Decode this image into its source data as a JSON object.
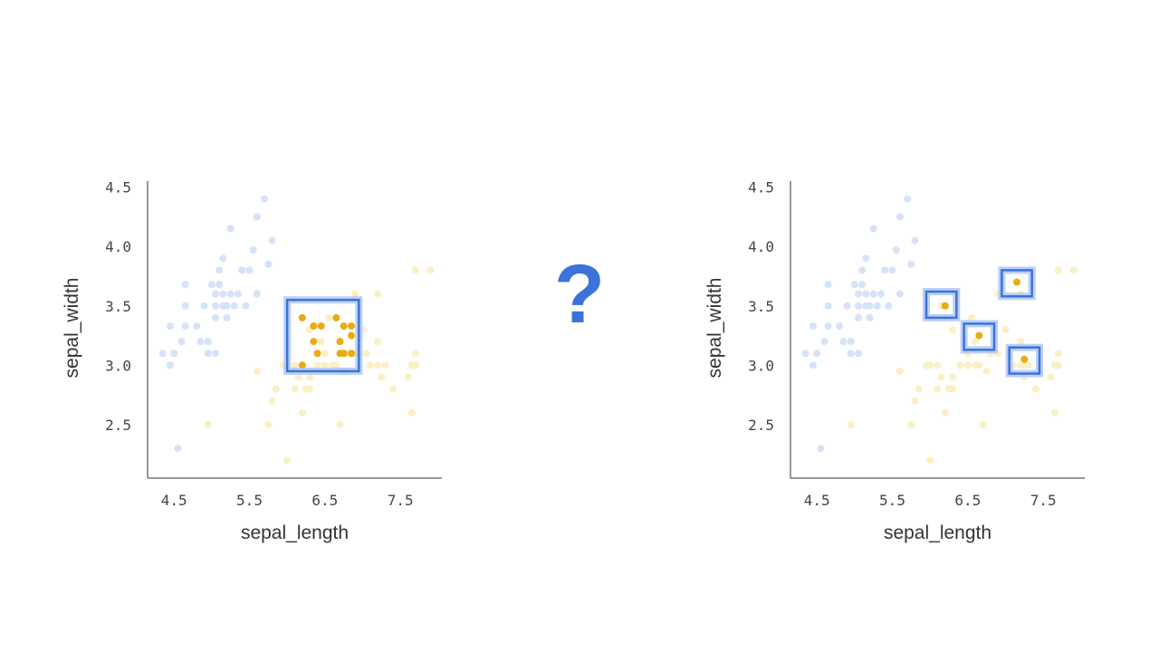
{
  "question_mark": "?",
  "colors": {
    "faded_blue": "#d6e2f8",
    "faded_yellow": "#fbefc5",
    "highlight": "#e8ab14",
    "box_stroke": "#3b73dc",
    "box_glow": "#a9c4f2",
    "question_mark": "#3b73dc"
  },
  "chart_data": [
    {
      "type": "scatter",
      "xlabel": "sepal_length",
      "ylabel": "sepal_width",
      "xticks": [
        "4.5",
        "5.5",
        "6.5",
        "7.5"
      ],
      "yticks": [
        "2.5",
        "3.0",
        "3.5",
        "4.0",
        "4.5"
      ],
      "xlim": [
        4.15,
        8.05
      ],
      "ylim": [
        2.05,
        4.55
      ],
      "grid": false,
      "series": [
        {
          "color": "faded_blue",
          "points": [
            [
              4.5,
              3.1
            ],
            [
              4.35,
              3.1
            ],
            [
              4.45,
              3.0
            ],
            [
              4.45,
              3.33
            ],
            [
              4.6,
              3.2
            ],
            [
              4.65,
              3.33
            ],
            [
              4.8,
              3.33
            ],
            [
              4.65,
              3.5
            ],
            [
              4.65,
              3.68
            ],
            [
              4.85,
              3.2
            ],
            [
              4.9,
              3.5
            ],
            [
              4.95,
              3.1
            ],
            [
              4.95,
              3.2
            ],
            [
              5.0,
              3.68
            ],
            [
              5.05,
              3.1
            ],
            [
              5.05,
              3.4
            ],
            [
              5.05,
              3.5
            ],
            [
              5.05,
              3.6
            ],
            [
              5.1,
              3.68
            ],
            [
              5.15,
              3.5
            ],
            [
              5.15,
              3.6
            ],
            [
              5.1,
              3.8
            ],
            [
              5.15,
              3.9
            ],
            [
              5.2,
              3.4
            ],
            [
              5.25,
              3.6
            ],
            [
              5.2,
              3.5
            ],
            [
              5.3,
              3.5
            ],
            [
              5.35,
              3.6
            ],
            [
              5.4,
              3.8
            ],
            [
              5.45,
              3.5
            ],
            [
              5.5,
              3.8
            ],
            [
              5.55,
              3.97
            ],
            [
              5.6,
              3.6
            ],
            [
              5.25,
              4.15
            ],
            [
              5.6,
              4.25
            ],
            [
              5.7,
              4.4
            ],
            [
              5.75,
              3.85
            ],
            [
              5.8,
              4.05
            ],
            [
              4.55,
              2.3
            ]
          ]
        },
        {
          "color": "faded_yellow",
          "points": [
            [
              4.95,
              2.5
            ],
            [
              5.6,
              2.95
            ],
            [
              5.75,
              2.5
            ],
            [
              5.8,
              2.7
            ],
            [
              5.85,
              2.8
            ],
            [
              5.95,
              3.0
            ],
            [
              6.0,
              3.0
            ],
            [
              6.0,
              2.2
            ],
            [
              6.1,
              2.8
            ],
            [
              6.1,
              3.0
            ],
            [
              6.15,
              2.9
            ],
            [
              6.2,
              2.6
            ],
            [
              6.25,
              2.8
            ],
            [
              6.3,
              2.8
            ],
            [
              6.3,
              2.9
            ],
            [
              6.3,
              3.3
            ],
            [
              6.4,
              3.0
            ],
            [
              6.45,
              3.2
            ],
            [
              6.5,
              3.0
            ],
            [
              6.6,
              3.0
            ],
            [
              6.65,
              3.0
            ],
            [
              6.7,
              2.5
            ],
            [
              6.8,
              3.1
            ],
            [
              6.9,
              3.1
            ],
            [
              7.0,
              3.3
            ],
            [
              7.05,
              3.1
            ],
            [
              7.1,
              3.0
            ],
            [
              7.2,
              3.0
            ],
            [
              7.2,
              3.2
            ],
            [
              7.2,
              3.6
            ],
            [
              7.25,
              2.9
            ],
            [
              7.3,
              3.0
            ],
            [
              7.4,
              2.8
            ],
            [
              7.6,
              2.9
            ],
            [
              7.65,
              3.0
            ],
            [
              7.7,
              3.0
            ],
            [
              7.7,
              3.1
            ],
            [
              7.65,
              2.6
            ],
            [
              7.7,
              3.8
            ],
            [
              7.9,
              3.8
            ],
            [
              6.75,
              2.95
            ],
            [
              6.55,
              3.4
            ],
            [
              6.5,
              3.1
            ],
            [
              6.9,
              3.6
            ],
            [
              6.2,
              3.4
            ]
          ]
        },
        {
          "color": "highlight",
          "points": [
            [
              6.2,
              3.4
            ],
            [
              6.35,
              3.33
            ],
            [
              6.45,
              3.33
            ],
            [
              6.35,
              3.2
            ],
            [
              6.65,
              3.4
            ],
            [
              6.75,
              3.33
            ],
            [
              6.85,
              3.33
            ],
            [
              6.85,
              3.25
            ],
            [
              6.7,
              3.2
            ],
            [
              6.85,
              3.1
            ],
            [
              6.4,
              3.1
            ],
            [
              6.7,
              3.1
            ],
            [
              6.75,
              3.1
            ],
            [
              6.2,
              3.0
            ]
          ]
        }
      ],
      "boxes": [
        {
          "x": [
            6.0,
            6.95
          ],
          "y": [
            2.95,
            3.55
          ]
        }
      ]
    },
    {
      "type": "scatter",
      "xlabel": "sepal_length",
      "ylabel": "sepal_width",
      "xticks": [
        "4.5",
        "5.5",
        "6.5",
        "7.5"
      ],
      "yticks": [
        "2.5",
        "3.0",
        "3.5",
        "4.0",
        "4.5"
      ],
      "xlim": [
        4.15,
        8.05
      ],
      "ylim": [
        2.05,
        4.55
      ],
      "grid": false,
      "series": [
        {
          "color": "faded_blue",
          "points": [
            [
              4.5,
              3.1
            ],
            [
              4.35,
              3.1
            ],
            [
              4.45,
              3.0
            ],
            [
              4.45,
              3.33
            ],
            [
              4.6,
              3.2
            ],
            [
              4.65,
              3.33
            ],
            [
              4.8,
              3.33
            ],
            [
              4.65,
              3.5
            ],
            [
              4.65,
              3.68
            ],
            [
              4.85,
              3.2
            ],
            [
              4.9,
              3.5
            ],
            [
              4.95,
              3.1
            ],
            [
              4.95,
              3.2
            ],
            [
              5.0,
              3.68
            ],
            [
              5.05,
              3.1
            ],
            [
              5.05,
              3.4
            ],
            [
              5.05,
              3.5
            ],
            [
              5.05,
              3.6
            ],
            [
              5.1,
              3.68
            ],
            [
              5.15,
              3.5
            ],
            [
              5.15,
              3.6
            ],
            [
              5.1,
              3.8
            ],
            [
              5.15,
              3.9
            ],
            [
              5.2,
              3.4
            ],
            [
              5.25,
              3.6
            ],
            [
              5.2,
              3.5
            ],
            [
              5.3,
              3.5
            ],
            [
              5.35,
              3.6
            ],
            [
              5.4,
              3.8
            ],
            [
              5.45,
              3.5
            ],
            [
              5.5,
              3.8
            ],
            [
              5.55,
              3.97
            ],
            [
              5.6,
              3.6
            ],
            [
              5.25,
              4.15
            ],
            [
              5.6,
              4.25
            ],
            [
              5.7,
              4.4
            ],
            [
              5.75,
              3.85
            ],
            [
              5.8,
              4.05
            ],
            [
              4.55,
              2.3
            ]
          ]
        },
        {
          "color": "faded_yellow",
          "points": [
            [
              4.95,
              2.5
            ],
            [
              5.6,
              2.95
            ],
            [
              5.75,
              2.5
            ],
            [
              5.8,
              2.7
            ],
            [
              5.85,
              2.8
            ],
            [
              5.95,
              3.0
            ],
            [
              6.0,
              3.0
            ],
            [
              6.0,
              2.2
            ],
            [
              6.1,
              2.8
            ],
            [
              6.1,
              3.0
            ],
            [
              6.15,
              2.9
            ],
            [
              6.2,
              2.6
            ],
            [
              6.25,
              2.8
            ],
            [
              6.3,
              2.8
            ],
            [
              6.3,
              2.9
            ],
            [
              6.3,
              3.3
            ],
            [
              6.4,
              3.0
            ],
            [
              6.45,
              3.2
            ],
            [
              6.5,
              3.0
            ],
            [
              6.6,
              3.0
            ],
            [
              6.65,
              3.0
            ],
            [
              6.7,
              2.5
            ],
            [
              6.8,
              3.1
            ],
            [
              6.9,
              3.1
            ],
            [
              7.0,
              3.3
            ],
            [
              7.05,
              3.1
            ],
            [
              7.1,
              3.0
            ],
            [
              7.2,
              3.0
            ],
            [
              7.2,
              3.2
            ],
            [
              7.2,
              3.6
            ],
            [
              7.25,
              2.9
            ],
            [
              7.3,
              3.0
            ],
            [
              7.4,
              2.8
            ],
            [
              7.6,
              2.9
            ],
            [
              7.65,
              3.0
            ],
            [
              7.7,
              3.0
            ],
            [
              7.7,
              3.1
            ],
            [
              7.65,
              2.6
            ],
            [
              7.7,
              3.8
            ],
            [
              7.9,
              3.8
            ],
            [
              6.75,
              2.95
            ],
            [
              6.55,
              3.4
            ],
            [
              6.5,
              3.1
            ],
            [
              6.9,
              3.6
            ],
            [
              6.2,
              3.4
            ],
            [
              6.15,
              3.5
            ],
            [
              6.6,
              3.2
            ],
            [
              7.15,
              3.7
            ],
            [
              7.25,
              3.0
            ]
          ]
        },
        {
          "color": "highlight",
          "points": [
            [
              6.2,
              3.5
            ],
            [
              6.65,
              3.25
            ],
            [
              7.15,
              3.7
            ],
            [
              7.25,
              3.05
            ]
          ]
        }
      ],
      "boxes": [
        {
          "x": [
            5.95,
            6.35
          ],
          "y": [
            3.4,
            3.62
          ]
        },
        {
          "x": [
            6.45,
            6.85
          ],
          "y": [
            3.13,
            3.35
          ]
        },
        {
          "x": [
            6.95,
            7.35
          ],
          "y": [
            3.58,
            3.8
          ]
        },
        {
          "x": [
            7.05,
            7.45
          ],
          "y": [
            2.93,
            3.15
          ]
        }
      ]
    }
  ]
}
